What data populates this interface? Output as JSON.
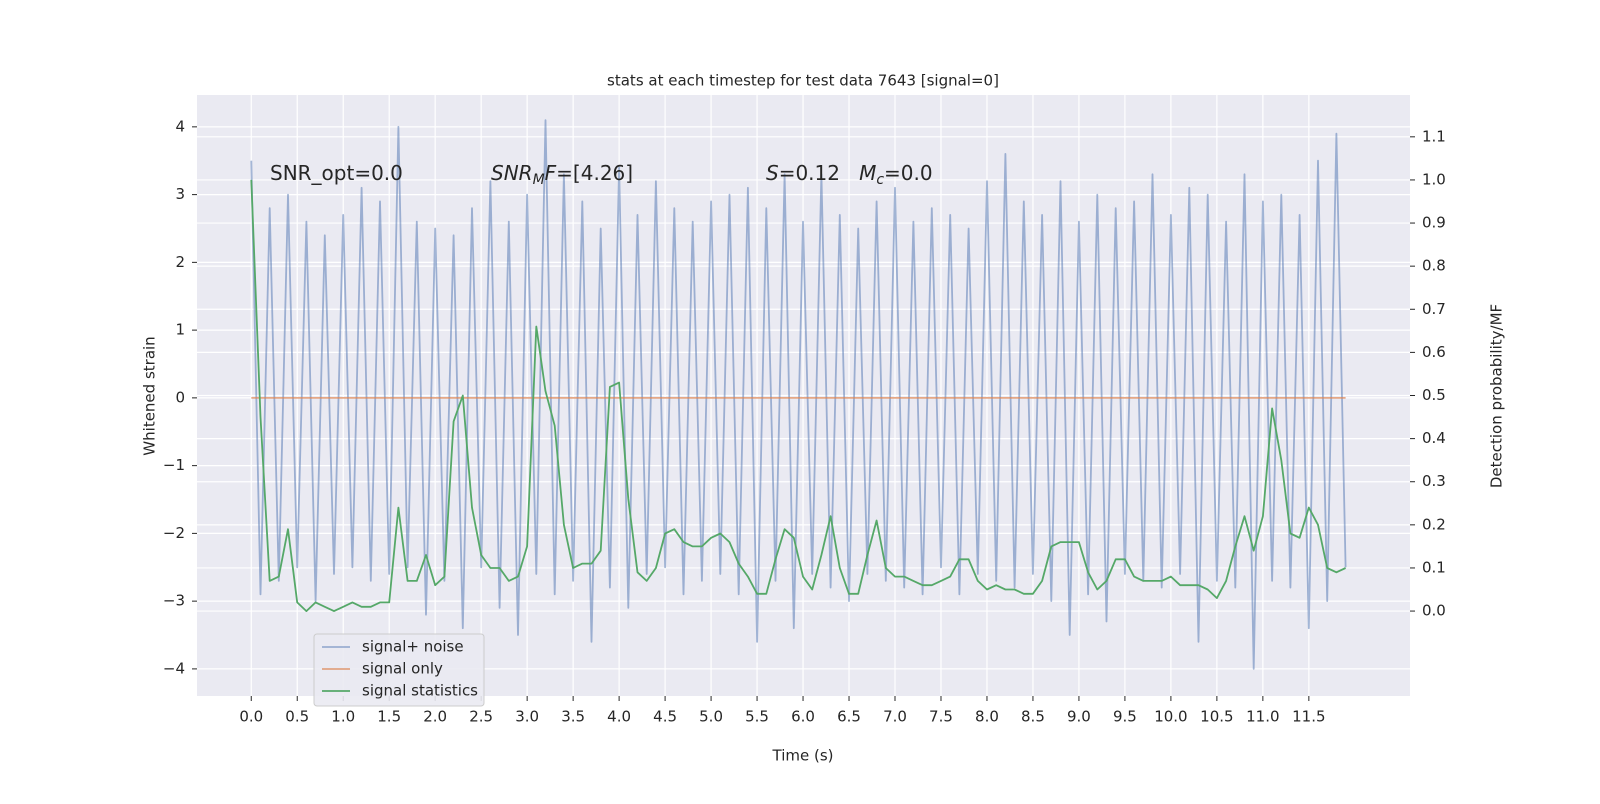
{
  "chart_data": {
    "type": "line",
    "title": "stats at each timestep for test data 7643 [signal=0]",
    "xlabel": "Time (s)",
    "ylabel": "Whitened strain",
    "y2label": "Detection probability/MF",
    "annotations": [
      [
        {
          "t": "SNR_opt=0.0"
        }
      ],
      [
        {
          "t": "SNR",
          "italic": true
        },
        {
          "t": "M",
          "italic": true,
          "sub": true
        },
        {
          "t": "F",
          "italic": true
        },
        {
          "t": "=[4.26]"
        }
      ],
      [
        {
          "t": "S",
          "italic": true
        },
        {
          "t": "=0.12   "
        },
        {
          "t": "M",
          "italic": true
        },
        {
          "t": "c",
          "italic": true,
          "sub": true
        },
        {
          "t": "=0.0"
        }
      ]
    ],
    "xlim": [
      -0.59,
      12.6
    ],
    "ylim": [
      -4.4,
      4.47
    ],
    "y2lim": [
      -0.197,
      1.197
    ],
    "xticks": [
      {
        "value": 0,
        "label": "0.0"
      },
      0.5,
      {
        "value": 1,
        "label": "1.0"
      },
      1.5,
      {
        "value": 2,
        "label": "2.0"
      },
      2.5,
      {
        "value": 3,
        "label": "3.0"
      },
      3.5,
      {
        "value": 4,
        "label": "4.0"
      },
      4.5,
      {
        "value": 5,
        "label": "5.0"
      },
      5.5,
      {
        "value": 6,
        "label": "6.0"
      },
      6.5,
      {
        "value": 7,
        "label": "7.0"
      },
      7.5,
      {
        "value": 8,
        "label": "8.0"
      },
      8.5,
      {
        "value": 9,
        "label": "9.0"
      },
      9.5,
      {
        "value": 10,
        "label": "10.0"
      },
      10.5,
      {
        "value": 11,
        "label": "11.0"
      },
      11.5
    ],
    "yticks": [
      {
        "value": -4,
        "label": "−4"
      },
      {
        "value": -3,
        "label": "−3"
      },
      {
        "value": -2,
        "label": "−2"
      },
      {
        "value": -1,
        "label": "−1"
      },
      0,
      1,
      2,
      3,
      4
    ],
    "y2ticks": [
      {
        "value": 0,
        "label": "0.0"
      },
      0.1,
      0.2,
      0.3,
      0.4,
      0.5,
      0.6,
      0.7,
      0.8,
      0.9,
      {
        "value": 1,
        "label": "1.0"
      },
      1.1
    ],
    "grid": true,
    "legend": "lower left",
    "x": [
      0,
      0.1,
      0.2,
      0.3,
      0.4,
      0.5,
      0.6,
      0.7,
      0.8,
      0.9,
      1,
      1.1,
      1.2,
      1.3,
      1.4,
      1.5,
      1.6,
      1.7,
      1.8,
      1.9,
      2,
      2.1,
      2.2,
      2.3,
      2.4,
      2.5,
      2.6,
      2.7,
      2.8,
      2.9,
      3,
      3.1,
      3.2,
      3.3,
      3.4,
      3.5,
      3.6,
      3.7,
      3.8,
      3.9,
      4,
      4.1,
      4.2,
      4.3,
      4.4,
      4.5,
      4.6,
      4.7,
      4.8,
      4.9,
      5,
      5.1,
      5.2,
      5.3,
      5.4,
      5.5,
      5.6,
      5.7,
      5.8,
      5.9,
      6,
      6.1,
      6.2,
      6.3,
      6.4,
      6.5,
      6.6,
      6.7,
      6.8,
      6.9,
      7,
      7.1,
      7.2,
      7.3,
      7.4,
      7.5,
      7.6,
      7.7,
      7.8,
      7.9,
      8,
      8.1,
      8.2,
      8.3,
      8.4,
      8.5,
      8.6,
      8.7,
      8.8,
      8.9,
      9,
      9.1,
      9.2,
      9.3,
      9.4,
      9.5,
      9.6,
      9.7,
      9.8,
      9.9,
      10,
      10.1,
      10.2,
      10.3,
      10.4,
      10.5,
      10.6,
      10.7,
      10.8,
      10.9,
      11,
      11.1,
      11.2,
      11.3,
      11.4,
      11.5,
      11.6,
      11.7,
      11.8,
      11.9
    ],
    "series": [
      {
        "name": "signal+ noise",
        "color": "#4c72b0",
        "opacity": 0.5,
        "values": [
          3.5,
          -2.9,
          2.8,
          -2.7,
          3.0,
          -2.5,
          2.6,
          -3.0,
          2.4,
          -2.6,
          2.7,
          -2.5,
          3.1,
          -2.7,
          2.9,
          -2.6,
          4.0,
          -2.5,
          2.6,
          -3.2,
          2.5,
          -2.7,
          2.4,
          -3.4,
          2.8,
          -2.5,
          3.2,
          -3.1,
          2.6,
          -3.5,
          3.0,
          -2.6,
          4.1,
          -2.9,
          3.3,
          -2.7,
          2.9,
          -3.6,
          2.5,
          -2.8,
          3.4,
          -3.1,
          2.7,
          -2.6,
          3.2,
          -2.5,
          2.8,
          -2.9,
          2.6,
          -2.7,
          2.9,
          -2.6,
          3.0,
          -2.9,
          3.1,
          -3.6,
          2.8,
          -2.7,
          3.3,
          -3.4,
          2.6,
          -2.6,
          3.3,
          -2.8,
          2.7,
          -3.0,
          2.5,
          -2.6,
          2.9,
          -2.7,
          3.1,
          -2.8,
          2.6,
          -2.9,
          2.8,
          -2.5,
          2.7,
          -2.9,
          2.5,
          -2.6,
          3.2,
          -2.7,
          3.6,
          -2.8,
          2.9,
          -2.6,
          2.7,
          -3.0,
          3.2,
          -3.5,
          2.6,
          -2.9,
          3.0,
          -3.3,
          2.8,
          -2.6,
          2.9,
          -2.7,
          3.3,
          -2.8,
          2.7,
          -2.6,
          3.1,
          -3.6,
          3.0,
          -2.7,
          2.6,
          -2.8,
          3.3,
          -4.0,
          2.9,
          -2.7,
          3.0,
          -2.8,
          2.7,
          -3.4,
          3.5,
          -3.0,
          3.9,
          -2.5
        ]
      },
      {
        "name": "signal only",
        "color": "#dd8452",
        "opacity": 0.7,
        "values": [
          0,
          0,
          0,
          0,
          0,
          0,
          0,
          0,
          0,
          0,
          0,
          0,
          0,
          0,
          0,
          0,
          0,
          0,
          0,
          0,
          0,
          0,
          0,
          0,
          0,
          0,
          0,
          0,
          0,
          0,
          0,
          0,
          0,
          0,
          0,
          0,
          0,
          0,
          0,
          0,
          0,
          0,
          0,
          0,
          0,
          0,
          0,
          0,
          0,
          0,
          0,
          0,
          0,
          0,
          0,
          0,
          0,
          0,
          0,
          0,
          0,
          0,
          0,
          0,
          0,
          0,
          0,
          0,
          0,
          0,
          0,
          0,
          0,
          0,
          0,
          0,
          0,
          0,
          0,
          0,
          0,
          0,
          0,
          0,
          0,
          0,
          0,
          0,
          0,
          0,
          0,
          0,
          0,
          0,
          0,
          0,
          0,
          0,
          0,
          0,
          0,
          0,
          0,
          0,
          0,
          0,
          0,
          0,
          0,
          0,
          0,
          0,
          0,
          0,
          0,
          0,
          0,
          0,
          0,
          0
        ]
      },
      {
        "name": "signal statistics",
        "color": "#55a868",
        "axis": "y2",
        "opacity": 1,
        "values": [
          1.0,
          0.45,
          0.07,
          0.08,
          0.19,
          0.02,
          0.0,
          0.02,
          0.01,
          0.0,
          0.01,
          0.02,
          0.01,
          0.01,
          0.02,
          0.02,
          0.24,
          0.07,
          0.07,
          0.13,
          0.06,
          0.08,
          0.44,
          0.5,
          0.24,
          0.13,
          0.1,
          0.1,
          0.07,
          0.08,
          0.15,
          0.66,
          0.51,
          0.43,
          0.2,
          0.1,
          0.11,
          0.11,
          0.14,
          0.52,
          0.53,
          0.26,
          0.09,
          0.07,
          0.1,
          0.18,
          0.19,
          0.16,
          0.15,
          0.15,
          0.17,
          0.18,
          0.16,
          0.11,
          0.08,
          0.04,
          0.04,
          0.12,
          0.19,
          0.17,
          0.08,
          0.05,
          0.13,
          0.22,
          0.1,
          0.04,
          0.04,
          0.13,
          0.21,
          0.1,
          0.08,
          0.08,
          0.07,
          0.06,
          0.06,
          0.07,
          0.08,
          0.12,
          0.12,
          0.07,
          0.05,
          0.06,
          0.05,
          0.05,
          0.04,
          0.04,
          0.07,
          0.15,
          0.16,
          0.16,
          0.16,
          0.09,
          0.05,
          0.07,
          0.12,
          0.12,
          0.08,
          0.07,
          0.07,
          0.07,
          0.08,
          0.06,
          0.06,
          0.06,
          0.05,
          0.03,
          0.07,
          0.15,
          0.22,
          0.14,
          0.22,
          0.47,
          0.35,
          0.18,
          0.17,
          0.24,
          0.2,
          0.1,
          0.09,
          0.1
        ]
      }
    ]
  }
}
